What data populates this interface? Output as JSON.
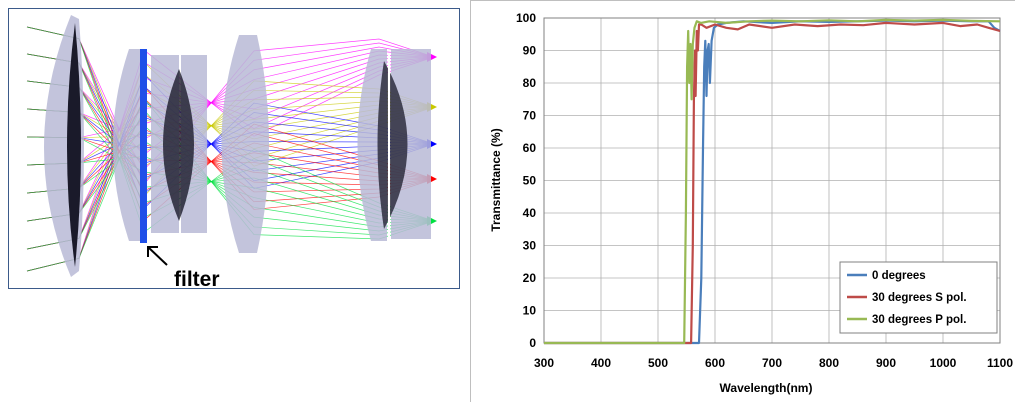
{
  "optics": {
    "filter_label": "filter",
    "colors": {
      "lens_fill": "#b8bad6",
      "filter": "#1f4fe8",
      "ray_colors": [
        "#ff00ff",
        "#c8c800",
        "#0000ff",
        "#ff0000",
        "#00e040"
      ]
    }
  },
  "chart_data": {
    "type": "line",
    "xlabel": "Wavelength(nm)",
    "ylabel": "Transmittance (%)",
    "xlim": [
      300,
      1100
    ],
    "ylim": [
      0,
      100
    ],
    "xticks": [
      300,
      400,
      500,
      600,
      700,
      800,
      900,
      1000,
      1100
    ],
    "yticks": [
      0,
      10,
      20,
      30,
      40,
      50,
      60,
      70,
      80,
      90,
      100
    ],
    "grid": true,
    "legend_position": "bottom-right",
    "series": [
      {
        "name": "0 degrees",
        "color": "#4a7ebb",
        "points": [
          [
            300,
            0
          ],
          [
            565,
            0
          ],
          [
            572,
            0
          ],
          [
            576,
            20
          ],
          [
            579,
            60
          ],
          [
            581,
            85
          ],
          [
            583,
            93
          ],
          [
            585,
            76
          ],
          [
            587,
            90
          ],
          [
            589,
            92
          ],
          [
            591,
            80
          ],
          [
            594,
            93
          ],
          [
            598,
            97
          ],
          [
            605,
            98
          ],
          [
            620,
            98.5
          ],
          [
            650,
            99
          ],
          [
            700,
            98.5
          ],
          [
            750,
            99
          ],
          [
            800,
            98.8
          ],
          [
            850,
            99
          ],
          [
            900,
            99.2
          ],
          [
            950,
            99
          ],
          [
            1000,
            99.2
          ],
          [
            1050,
            99
          ],
          [
            1080,
            99
          ],
          [
            1090,
            97
          ],
          [
            1100,
            96
          ]
        ]
      },
      {
        "name": "30 degrees S pol.",
        "color": "#be4b48",
        "points": [
          [
            300,
            0
          ],
          [
            552,
            0
          ],
          [
            558,
            0
          ],
          [
            561,
            30
          ],
          [
            563,
            75
          ],
          [
            565,
            90
          ],
          [
            566,
            76
          ],
          [
            568,
            96
          ],
          [
            570,
            90
          ],
          [
            572,
            98
          ],
          [
            576,
            98
          ],
          [
            585,
            97
          ],
          [
            600,
            98
          ],
          [
            620,
            97
          ],
          [
            640,
            96.5
          ],
          [
            660,
            98
          ],
          [
            700,
            97
          ],
          [
            740,
            98
          ],
          [
            780,
            97.5
          ],
          [
            820,
            98
          ],
          [
            860,
            97.8
          ],
          [
            900,
            98.5
          ],
          [
            950,
            98
          ],
          [
            1000,
            98.5
          ],
          [
            1030,
            97.5
          ],
          [
            1060,
            98
          ],
          [
            1080,
            97
          ],
          [
            1100,
            96
          ]
        ]
      },
      {
        "name": "30 degrees P pol.",
        "color": "#98b954",
        "points": [
          [
            300,
            0
          ],
          [
            540,
            0
          ],
          [
            546,
            0
          ],
          [
            549,
            40
          ],
          [
            551,
            85
          ],
          [
            553,
            96
          ],
          [
            555,
            80
          ],
          [
            557,
            92
          ],
          [
            559,
            75
          ],
          [
            561,
            92
          ],
          [
            564,
            97
          ],
          [
            568,
            99
          ],
          [
            575,
            98.5
          ],
          [
            590,
            99
          ],
          [
            620,
            98.5
          ],
          [
            660,
            99
          ],
          [
            700,
            99.2
          ],
          [
            750,
            99
          ],
          [
            800,
            99.3
          ],
          [
            850,
            99
          ],
          [
            900,
            99.4
          ],
          [
            950,
            99.2
          ],
          [
            1000,
            99.4
          ],
          [
            1050,
            99.1
          ],
          [
            1100,
            99
          ]
        ]
      }
    ]
  }
}
